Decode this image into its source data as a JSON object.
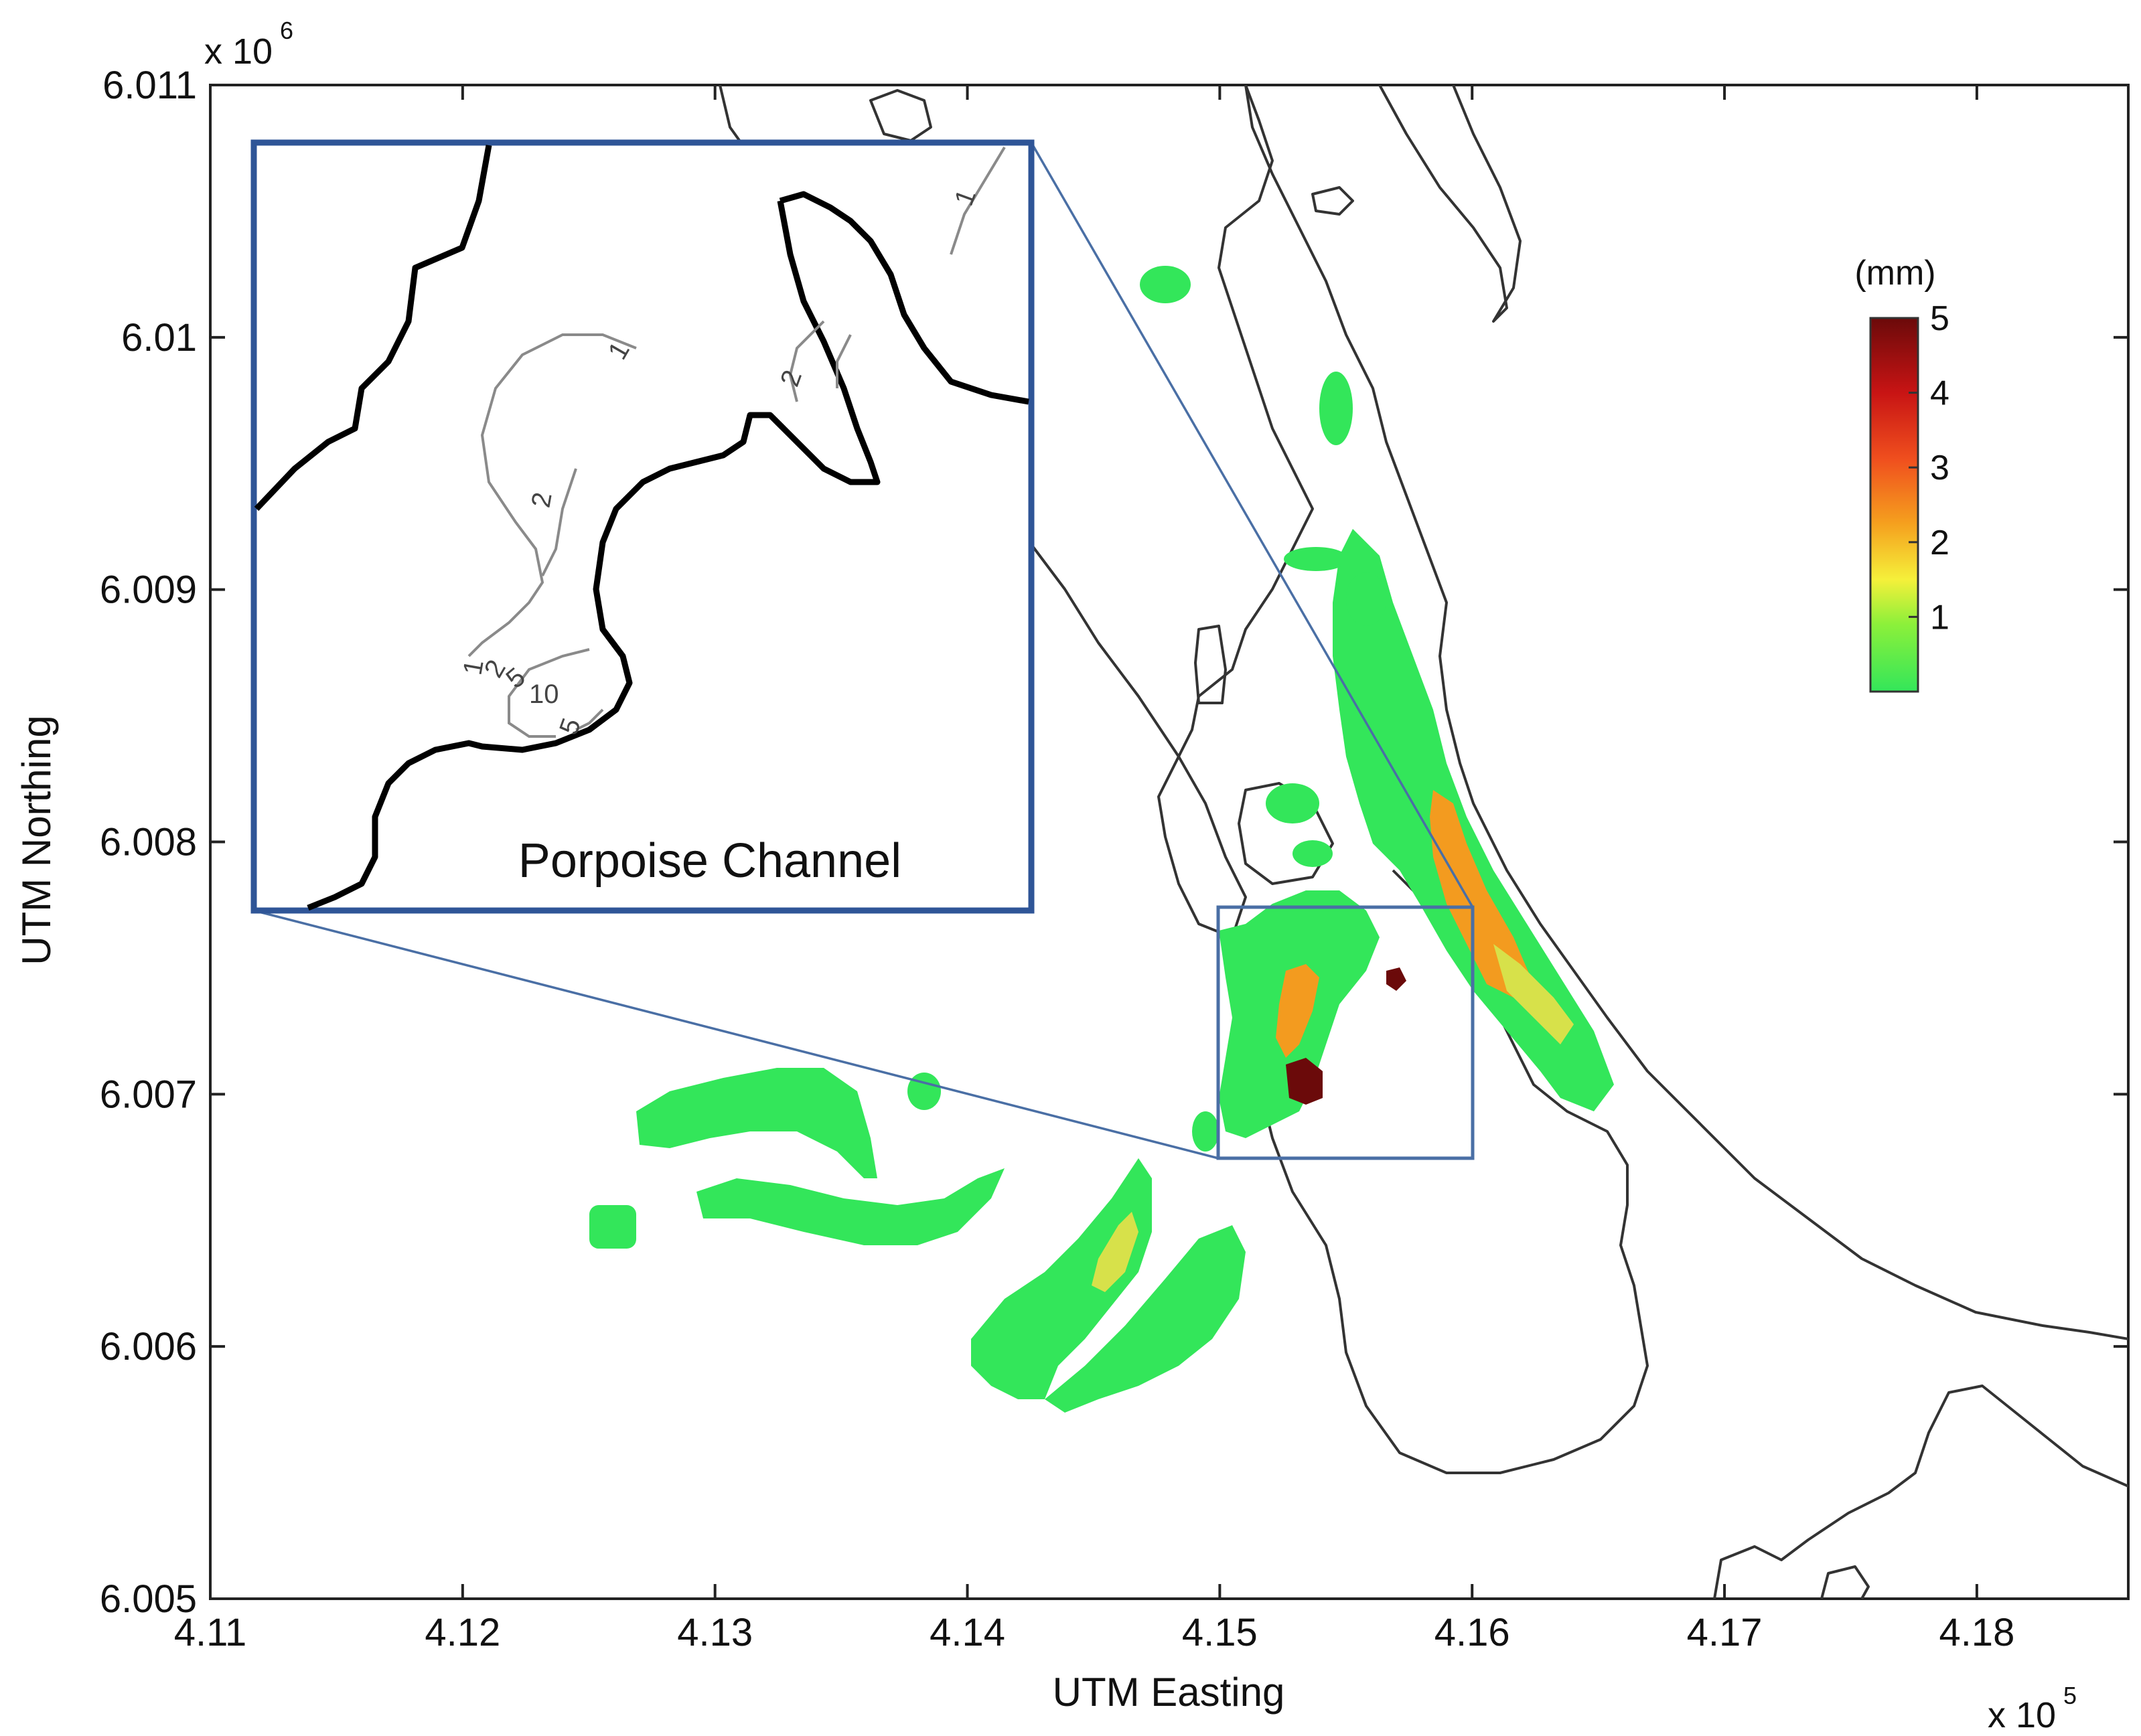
{
  "chart_data": {
    "type": "map",
    "xlabel": "UTM Easting",
    "ylabel": "UTM Northing",
    "x_multiplier": {
      "base": "x 10",
      "exponent": "5"
    },
    "y_multiplier": {
      "base": "x 10",
      "exponent": "6"
    },
    "xlim": [
      4.11,
      4.186
    ],
    "ylim": [
      6.005,
      6.011
    ],
    "x_ticks": [
      {
        "value": 4.11,
        "label": "4.11"
      },
      {
        "value": 4.12,
        "label": "4.12"
      },
      {
        "value": 4.13,
        "label": "4.13"
      },
      {
        "value": 4.14,
        "label": "4.14"
      },
      {
        "value": 4.15,
        "label": "4.15"
      },
      {
        "value": 4.16,
        "label": "4.16"
      },
      {
        "value": 4.17,
        "label": "4.17"
      },
      {
        "value": 4.18,
        "label": "4.18"
      }
    ],
    "y_ticks": [
      {
        "value": 6.005,
        "label": "6.005"
      },
      {
        "value": 6.006,
        "label": "6.006"
      },
      {
        "value": 6.007,
        "label": "6.007"
      },
      {
        "value": 6.008,
        "label": "6.008"
      },
      {
        "value": 6.009,
        "label": "6.009"
      },
      {
        "value": 6.01,
        "label": "6.01"
      },
      {
        "value": 6.011,
        "label": "6.011"
      }
    ],
    "colorbar": {
      "unit": "(mm)",
      "range": [
        0,
        5
      ],
      "ticks": [
        "5",
        "4",
        "3",
        "2",
        "1"
      ],
      "colors": [
        "#33e65a",
        "#8cf03a",
        "#f5f03a",
        "#f5a01e",
        "#f0501e",
        "#c81414",
        "#6b0a0a"
      ]
    },
    "zoom_box": {
      "x": [
        4.15,
        4.16
      ],
      "y": [
        6.00675,
        6.00775
      ]
    },
    "inset": {
      "title": "Porpoise Channel",
      "contour_labels": [
        "1",
        "2",
        "1",
        "2",
        "1",
        "2",
        "5",
        "10",
        "5"
      ]
    },
    "colors": {
      "coastline": "#333333",
      "inset_frame": "#2f5597",
      "zoom_box": "#4a6fa5",
      "contour": "#8a8a8a"
    }
  }
}
